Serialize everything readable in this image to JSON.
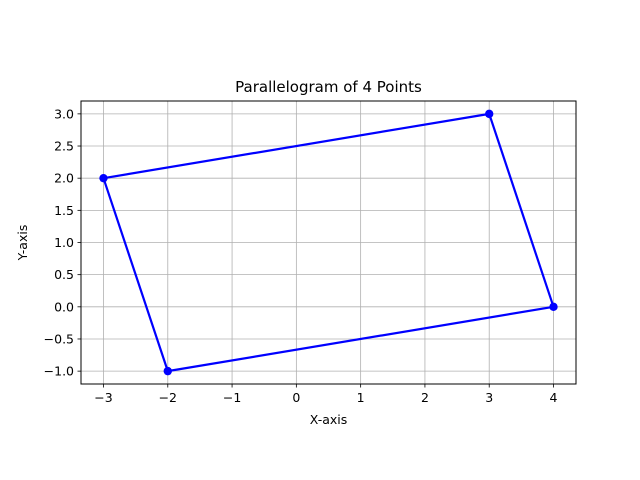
{
  "chart_data": {
    "type": "line",
    "title": "Parallelogram of 4 Points",
    "xlabel": "X-axis",
    "ylabel": "Y-axis",
    "xlim": [
      -3.35,
      4.35
    ],
    "ylim": [
      -1.2,
      3.2
    ],
    "xticks": [
      -3,
      -2,
      -1,
      0,
      1,
      2,
      3,
      4
    ],
    "xtick_labels": [
      "−3",
      "−2",
      "−1",
      "0",
      "1",
      "2",
      "3",
      "4"
    ],
    "yticks": [
      -1.0,
      -0.5,
      0.0,
      0.5,
      1.0,
      1.5,
      2.0,
      2.5,
      3.0
    ],
    "ytick_labels": [
      "−1.0",
      "−0.5",
      "0.0",
      "0.5",
      "1.0",
      "1.5",
      "2.0",
      "2.5",
      "3.0"
    ],
    "grid": true,
    "series": [
      {
        "x": [
          -3,
          3,
          4,
          -2,
          -3
        ],
        "y": [
          2,
          3,
          0,
          -1,
          2
        ],
        "color": "#0000ff",
        "marker": "circle",
        "closed": true
      }
    ]
  }
}
